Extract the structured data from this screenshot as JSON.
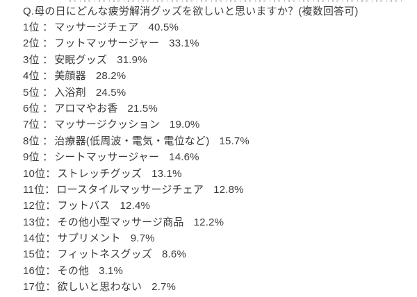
{
  "survey": {
    "question": "Q.母の日にどんな疲労解消グッズを欲しいと思いますか？(複数回答可)",
    "colon": "：",
    "text_color": "#3c3c3c",
    "background_color": "#ffffff",
    "items": [
      {
        "rank": "1位",
        "label": "マッサージチェア",
        "percent": "40.5%",
        "value": 40.5
      },
      {
        "rank": "2位",
        "label": "フットマッサージャー",
        "percent": "33.1%",
        "value": 33.1
      },
      {
        "rank": "3位",
        "label": "安眠グッズ",
        "percent": "31.9%",
        "value": 31.9
      },
      {
        "rank": "4位",
        "label": "美顔器",
        "percent": "28.2%",
        "value": 28.2
      },
      {
        "rank": "5位",
        "label": "入浴剤",
        "percent": "24.5%",
        "value": 24.5
      },
      {
        "rank": "6位",
        "label": "アロマやお香",
        "percent": "21.5%",
        "value": 21.5
      },
      {
        "rank": "7位",
        "label": "マッサージクッション",
        "percent": "19.0%",
        "value": 19.0
      },
      {
        "rank": "8位",
        "label": "治療器(低周波・電気・電位など)",
        "percent": "15.7%",
        "value": 15.7
      },
      {
        "rank": "9位",
        "label": "シートマッサージャー",
        "percent": "14.6%",
        "value": 14.6
      },
      {
        "rank": "10位",
        "label": "ストレッチグッズ",
        "percent": "13.1%",
        "value": 13.1
      },
      {
        "rank": "11位",
        "label": "ロースタイルマッサージチェア",
        "percent": "12.8%",
        "value": 12.8
      },
      {
        "rank": "12位",
        "label": "フットバス",
        "percent": "12.4%",
        "value": 12.4
      },
      {
        "rank": "13位",
        "label": "その他小型マッサージ商品",
        "percent": "12.2%",
        "value": 12.2
      },
      {
        "rank": "14位",
        "label": "サプリメント",
        "percent": "9.7%",
        "value": 9.7
      },
      {
        "rank": "15位",
        "label": "フィットネスグッズ",
        "percent": "8.6%",
        "value": 8.6
      },
      {
        "rank": "16位",
        "label": "その他",
        "percent": "3.1%",
        "value": 3.1
      },
      {
        "rank": "17位",
        "label": "欲しいと思わない",
        "percent": "2.7%",
        "value": 2.7
      }
    ]
  }
}
